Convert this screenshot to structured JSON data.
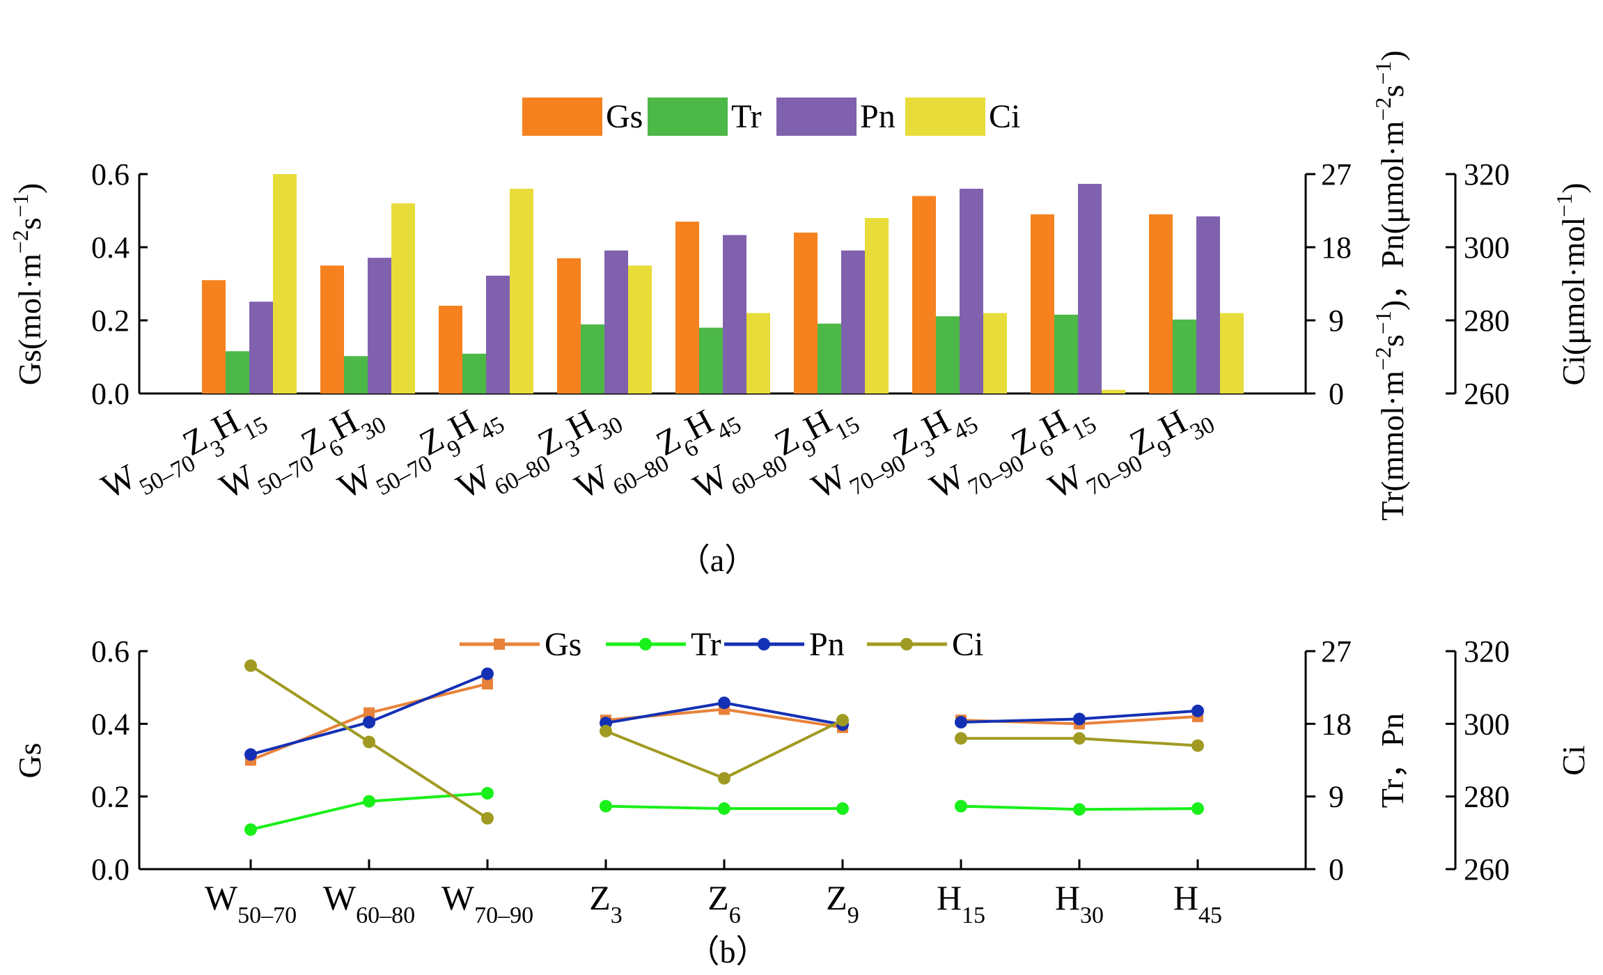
{
  "chart_data": [
    {
      "type": "bar",
      "caption": "（a）",
      "categories": [
        {
          "W": "50–70",
          "Z": "3",
          "H": "15"
        },
        {
          "W": "50–70",
          "Z": "6",
          "H": "30"
        },
        {
          "W": "50–70",
          "Z": "9",
          "H": "45"
        },
        {
          "W": "60–80",
          "Z": "3",
          "H": "30"
        },
        {
          "W": "60–80",
          "Z": "6",
          "H": "45"
        },
        {
          "W": "60–80",
          "Z": "9",
          "H": "15"
        },
        {
          "W": "70–90",
          "Z": "3",
          "H": "45"
        },
        {
          "W": "70–90",
          "Z": "6",
          "H": "15"
        },
        {
          "W": "70–90",
          "Z": "9",
          "H": "30"
        }
      ],
      "series": [
        {
          "name": "Gs",
          "axis": "left",
          "color": "#F5821F",
          "values": [
            0.31,
            0.35,
            0.24,
            0.37,
            0.47,
            0.44,
            0.54,
            0.49,
            0.49
          ]
        },
        {
          "name": "Tr",
          "axis": "right1",
          "color": "#4CB847",
          "values": [
            5.2,
            4.6,
            4.9,
            8.5,
            8.1,
            8.6,
            9.5,
            9.7,
            9.1
          ]
        },
        {
          "name": "Pn",
          "axis": "right1",
          "color": "#8061AD",
          "values": [
            11.3,
            16.7,
            14.5,
            17.6,
            19.5,
            17.6,
            25.2,
            25.8,
            21.8
          ]
        },
        {
          "name": "Ci",
          "axis": "right2",
          "color": "#E8DC3A",
          "values": [
            320,
            312,
            316,
            295,
            282,
            308,
            282,
            261,
            282
          ]
        }
      ],
      "y_left": {
        "label": "Gs(mol·m⁻²s⁻¹)",
        "ylim": [
          0,
          0.6
        ],
        "ticks": [
          "0.0",
          "0.2",
          "0.4",
          "0.6"
        ]
      },
      "y_right1": {
        "label": "Tr(mmol·m⁻²s⁻¹)，Pn(μmol·m⁻²s⁻¹)",
        "ylim": [
          0,
          27
        ],
        "ticks": [
          "0",
          "9",
          "18",
          "27"
        ]
      },
      "y_right2": {
        "label": "Ci(μmol·mol⁻¹)",
        "ylim": [
          260,
          320
        ],
        "ticks": [
          "260",
          "280",
          "300",
          "320"
        ]
      },
      "legend": "top-center"
    },
    {
      "type": "line",
      "caption": "（b）",
      "groups": [
        [
          {
            "base": "W",
            "sub": "50–70"
          },
          {
            "base": "W",
            "sub": "60–80"
          },
          {
            "base": "W",
            "sub": "70–90"
          }
        ],
        [
          {
            "base": "Z",
            "sub": "3"
          },
          {
            "base": "Z",
            "sub": "6"
          },
          {
            "base": "Z",
            "sub": "9"
          }
        ],
        [
          {
            "base": "H",
            "sub": "15"
          },
          {
            "base": "H",
            "sub": "30"
          },
          {
            "base": "H",
            "sub": "45"
          }
        ]
      ],
      "series": [
        {
          "name": "Gs",
          "axis": "left",
          "color": "#E8823A",
          "marker": "square",
          "values": [
            0.3,
            0.43,
            0.51,
            0.41,
            0.44,
            0.39,
            0.41,
            0.4,
            0.42
          ]
        },
        {
          "name": "Tr",
          "axis": "right1",
          "color": "#19F019",
          "marker": "circle",
          "values": [
            4.9,
            8.4,
            9.4,
            7.8,
            7.5,
            7.5,
            7.8,
            7.4,
            7.5
          ]
        },
        {
          "name": "Pn",
          "axis": "right1",
          "color": "#1430B4",
          "marker": "circle",
          "values": [
            14.2,
            18.2,
            24.2,
            18.1,
            20.6,
            17.9,
            18.2,
            18.6,
            19.6
          ]
        },
        {
          "name": "Ci",
          "axis": "right2",
          "color": "#A09A22",
          "marker": "circle",
          "values": [
            316,
            295,
            274,
            298,
            285,
            301,
            296,
            296,
            294
          ]
        }
      ],
      "y_left": {
        "label": "Gs",
        "ylim": [
          0,
          0.6
        ],
        "ticks": [
          "0.0",
          "0.2",
          "0.4",
          "0.6"
        ]
      },
      "y_right1": {
        "label": "Tr，Pn",
        "ylim": [
          0,
          27
        ],
        "ticks": [
          "0",
          "9",
          "18",
          "27"
        ]
      },
      "y_right2": {
        "label": "Ci",
        "ylim": [
          260,
          320
        ],
        "ticks": [
          "260",
          "280",
          "300",
          "320"
        ]
      },
      "legend": "top-center"
    }
  ]
}
